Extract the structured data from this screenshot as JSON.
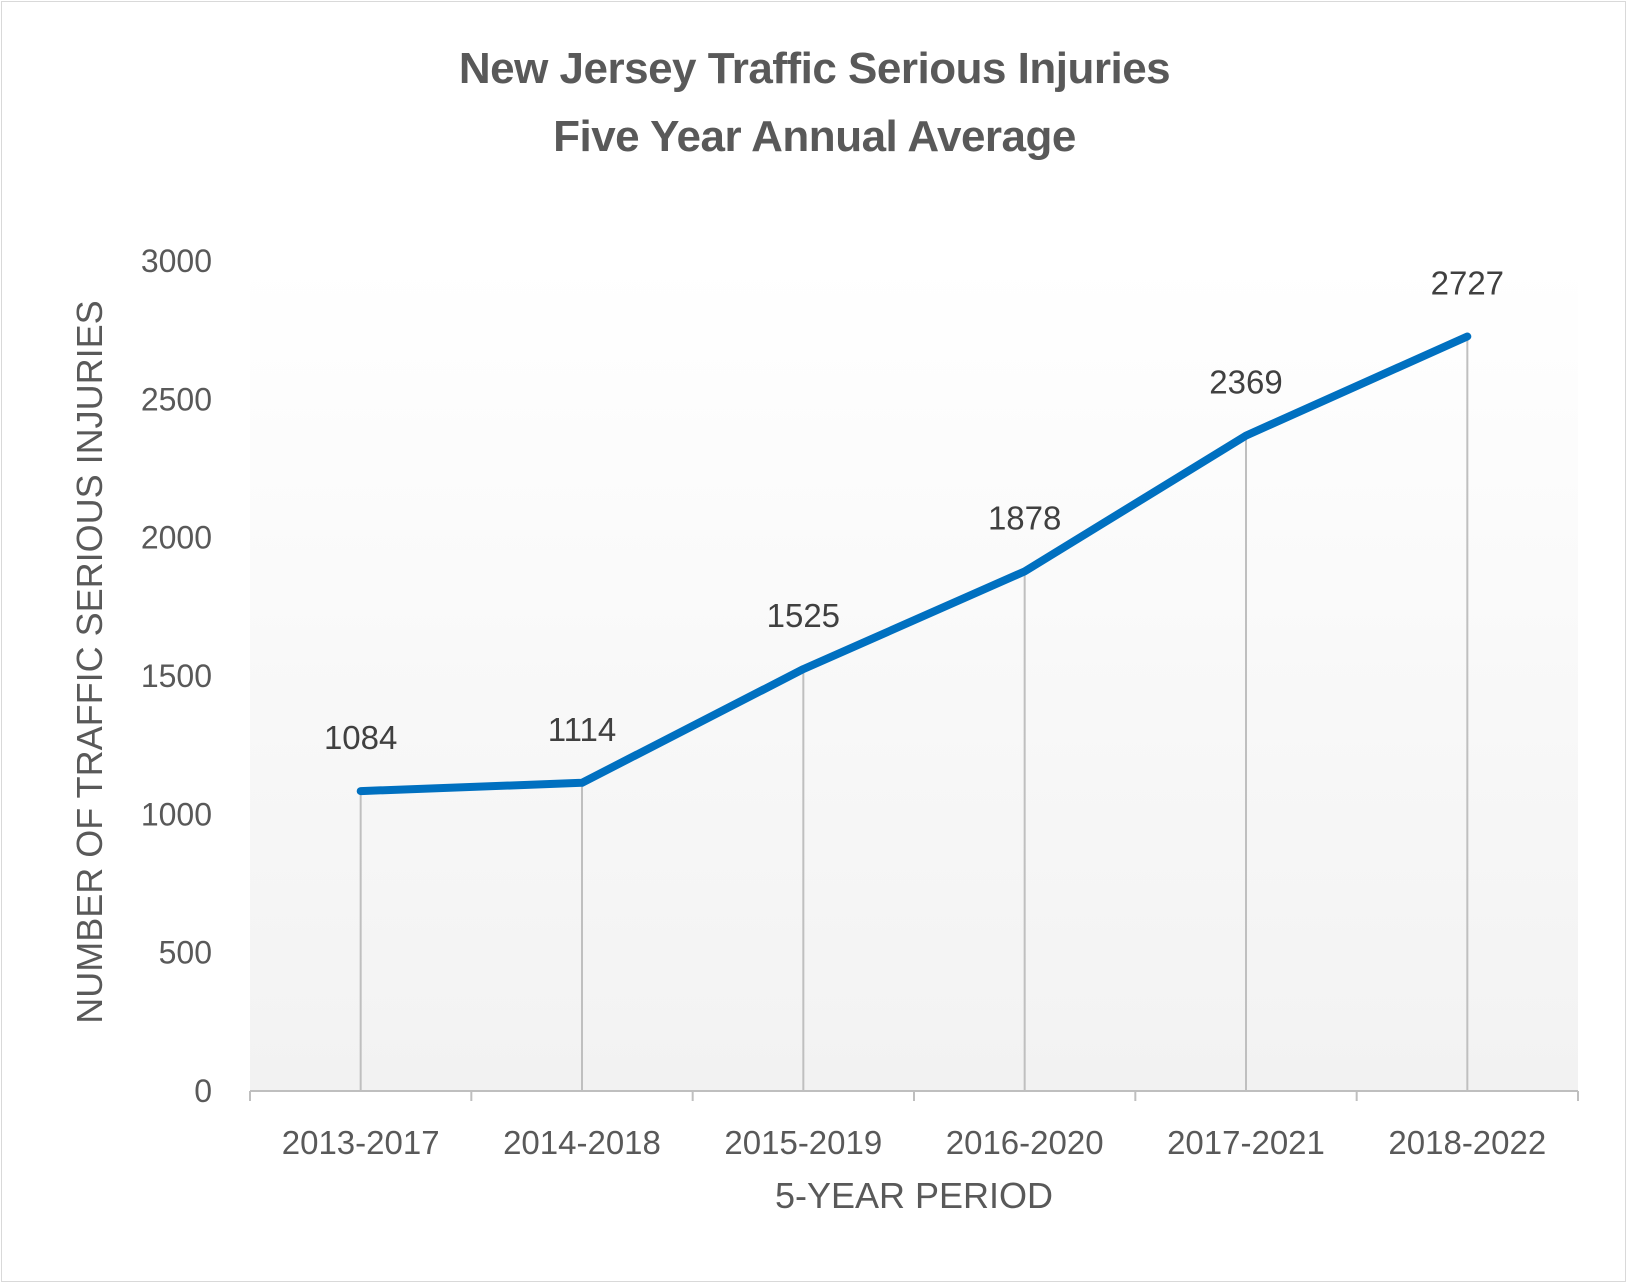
{
  "chart_data": {
    "type": "line",
    "title": "New Jersey Traffic Serious Injuries",
    "subtitle": "Five Year Annual Average",
    "xlabel": "5-YEAR PERIOD",
    "ylabel": "NUMBER OF TRAFFIC SERIOUS INJURIES",
    "categories": [
      "2013-2017",
      "2014-2018",
      "2015-2019",
      "2016-2020",
      "2017-2021",
      "2018-2022"
    ],
    "values": [
      1084,
      1114,
      1525,
      1878,
      2369,
      2727
    ],
    "data_labels": [
      "1084",
      "1114",
      "1525",
      "1878",
      "2369",
      "2727"
    ],
    "ylim": [
      0,
      3000
    ],
    "yticks": [
      "0",
      "500",
      "1000",
      "1500",
      "2000",
      "2500",
      "3000"
    ],
    "grid": false,
    "drop_lines": true,
    "legend": "none",
    "colors": {
      "line": "#0070c0",
      "text": "#595959",
      "drop_line": "#bfbfbf",
      "axis": "#bfbfbf",
      "plot_bg_top": "#ffffff",
      "plot_bg_bottom": "#f2f2f2"
    }
  }
}
